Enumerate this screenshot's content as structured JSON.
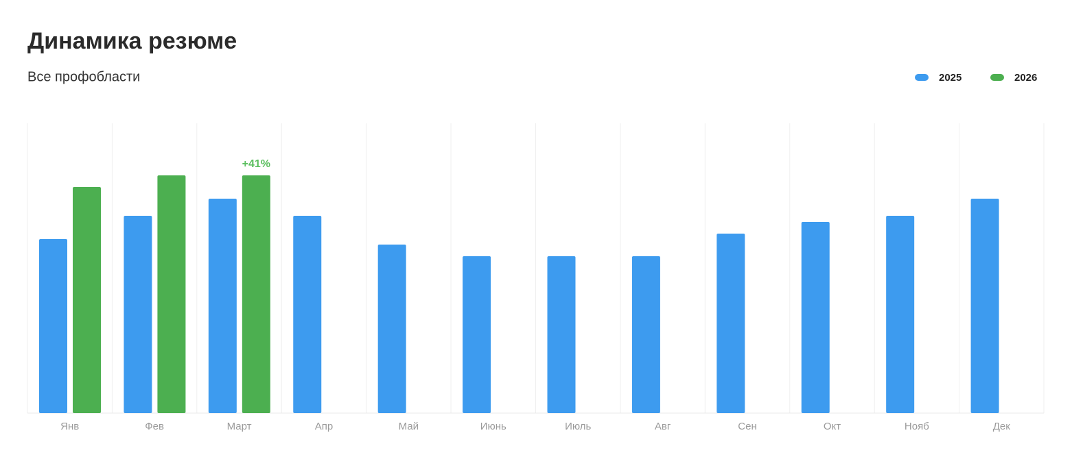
{
  "chart_data": {
    "type": "bar",
    "title": "Динамика резюме",
    "subtitle": "Все профобласти",
    "categories": [
      "Янв",
      "Фев",
      "Март",
      "Апр",
      "Май",
      "Июнь",
      "Июль",
      "Авг",
      "Сен",
      "Окт",
      "Нояб",
      "Дек"
    ],
    "series": [
      {
        "name": "2025",
        "color": "#3d9bef",
        "values": [
          254,
          288,
          313,
          288,
          246,
          229,
          229,
          229,
          262,
          279,
          288,
          313
        ]
      },
      {
        "name": "2026",
        "color": "#4caf50",
        "values": [
          330,
          347,
          347,
          null,
          null,
          null,
          null,
          null,
          null,
          null,
          null,
          null
        ]
      }
    ],
    "annotations": [
      {
        "text": "+41%",
        "series": "2026",
        "category": "Март",
        "color": "#5cbf60"
      }
    ],
    "ylim": [
      0,
      423
    ],
    "grid": true
  }
}
